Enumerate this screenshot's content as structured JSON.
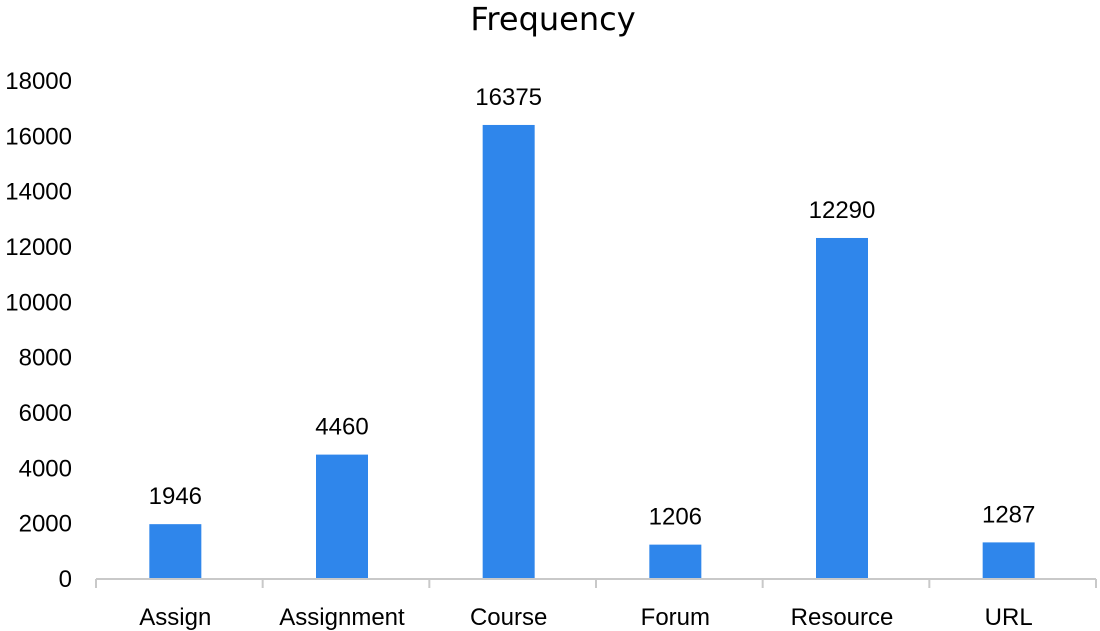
{
  "chart_data": {
    "type": "bar",
    "title": "Frequency",
    "xlabel": "",
    "ylabel": "",
    "categories": [
      "Assign",
      "Assignment",
      "Course",
      "Forum",
      "Resource",
      "URL"
    ],
    "values": [
      1946,
      4460,
      16375,
      1206,
      12290,
      1287
    ],
    "data_labels": [
      "1946",
      "4460",
      "16375",
      "1206",
      "12290",
      "1287"
    ],
    "ylim": [
      0,
      18000
    ],
    "yticks": [
      0,
      2000,
      4000,
      6000,
      8000,
      10000,
      12000,
      14000,
      16000,
      18000
    ],
    "grid": false,
    "legend": "none",
    "bar_color": "#2f86eb",
    "axis_color": "#c9c9c9"
  }
}
